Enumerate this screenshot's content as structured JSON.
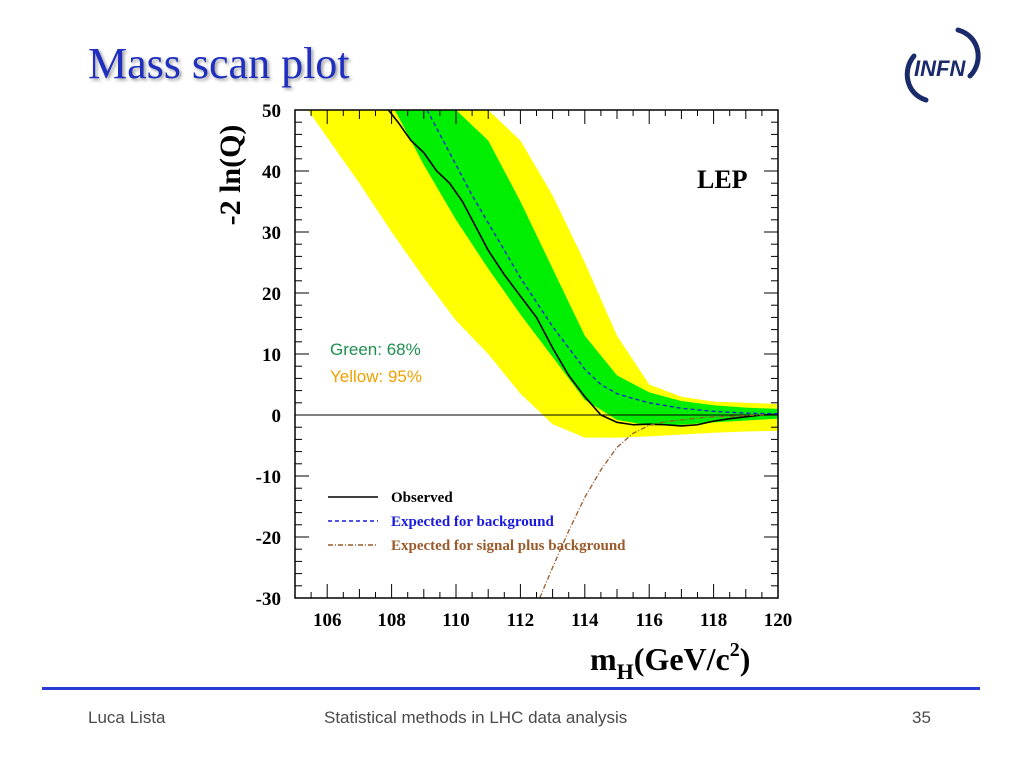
{
  "slide": {
    "title": "Mass scan plot",
    "logo_text": "INFN",
    "footer": {
      "author": "Luca Lista",
      "course": "Statistical methods in LHC data analysis",
      "page": "35"
    },
    "colors": {
      "title": "#1f2fbf",
      "footer_line": "#2b3bd6"
    }
  },
  "chart_data": {
    "type": "line",
    "ylabel": "-2 ln(Q)",
    "xlabel_main": "m",
    "xlabel_sub": "H",
    "xlabel_unit": "(GeV/c",
    "xlabel_sup": "2",
    "xlabel_close": ")",
    "experiment_label": "LEP",
    "xlim": [
      105,
      120
    ],
    "ylim": [
      -30,
      50
    ],
    "x_ticks": [
      106,
      108,
      110,
      112,
      114,
      116,
      118,
      120
    ],
    "y_ticks": [
      -30,
      -20,
      -10,
      0,
      10,
      20,
      30,
      40,
      50
    ],
    "band_notes": [
      {
        "text": "Green: 68%",
        "color": "#1f8f4f"
      },
      {
        "text": "Yellow: 95%",
        "color": "#f0a000"
      }
    ],
    "bands": [
      {
        "level": "95%",
        "color": "#ffff00",
        "x": [
          105.4,
          106,
          107,
          108,
          109,
          110,
          111,
          112,
          113,
          114,
          115,
          116,
          117,
          118,
          119,
          120
        ],
        "upper": [
          50,
          50,
          50,
          50,
          50,
          50,
          50,
          45,
          36,
          25,
          13,
          5,
          3,
          2.2,
          2,
          1.8
        ],
        "lower": [
          50,
          45.5,
          38,
          30,
          22.5,
          15.5,
          10,
          3.5,
          -1.5,
          -3.7,
          -3.7,
          -3.5,
          -3.2,
          -2.9,
          -2.7,
          -2.6
        ]
      },
      {
        "level": "68%",
        "color": "#00ee00",
        "x": [
          108.1,
          109,
          110,
          111,
          112,
          113,
          114,
          115,
          116,
          117,
          118,
          119,
          120
        ],
        "upper": [
          50,
          50,
          50,
          45,
          35,
          24,
          13,
          6.5,
          3.7,
          2.3,
          1.6,
          1.2,
          1.0
        ],
        "lower": [
          50,
          41,
          32,
          24,
          16.5,
          9.5,
          2.5,
          -0.8,
          -1.7,
          -1.6,
          -1.2,
          -0.9,
          -0.6
        ]
      }
    ],
    "series": [
      {
        "name": "Observed",
        "color": "#000000",
        "dash": "",
        "x": [
          107.9,
          108.2,
          108.6,
          109.0,
          109.4,
          109.8,
          110.2,
          110.6,
          111.0,
          111.5,
          112.0,
          112.5,
          113.0,
          113.5,
          114.0,
          114.5,
          115.0,
          115.5,
          116.0,
          116.5,
          117.0,
          117.5,
          118.0,
          118.5,
          119.0,
          119.5,
          120.0
        ],
        "y": [
          50,
          48,
          45,
          43,
          40,
          38,
          35,
          31,
          27,
          23,
          19.5,
          16,
          11,
          6.5,
          3,
          0,
          -1.2,
          -1.6,
          -1.5,
          -1.6,
          -1.8,
          -1.6,
          -1.0,
          -0.6,
          -0.3,
          0.0,
          0.1
        ]
      },
      {
        "name": "Expected for background",
        "color": "#1a1adf",
        "dash": "4 3",
        "x": [
          109.1,
          109.5,
          110.0,
          110.5,
          111.0,
          111.5,
          112.0,
          112.5,
          113.0,
          113.5,
          114.0,
          114.5,
          115.0,
          115.5,
          116.0,
          117.0,
          118.0,
          119.0,
          120.0
        ],
        "y": [
          50,
          46,
          41,
          36,
          31.5,
          27,
          22.5,
          18.5,
          14.5,
          11,
          7.5,
          5,
          3.5,
          2.7,
          2.0,
          1.1,
          0.6,
          0.3,
          0.2
        ]
      },
      {
        "name": "Expected for signal plus background",
        "color": "#9a5a2a",
        "dash": "5 2 1 2",
        "x": [
          112.6,
          113.0,
          113.5,
          114.0,
          114.5,
          115.0,
          115.5,
          116.0,
          116.5,
          117.0,
          117.5,
          118.0,
          118.5,
          119.0,
          119.5,
          120.0
        ],
        "y": [
          -30,
          -25,
          -19,
          -13.5,
          -9,
          -5.3,
          -3,
          -1.7,
          -1.1,
          -0.8,
          -0.5,
          -0.3,
          -0.2,
          -0.1,
          0.0,
          0.0
        ]
      }
    ],
    "legend_placement": "bottom-center"
  }
}
